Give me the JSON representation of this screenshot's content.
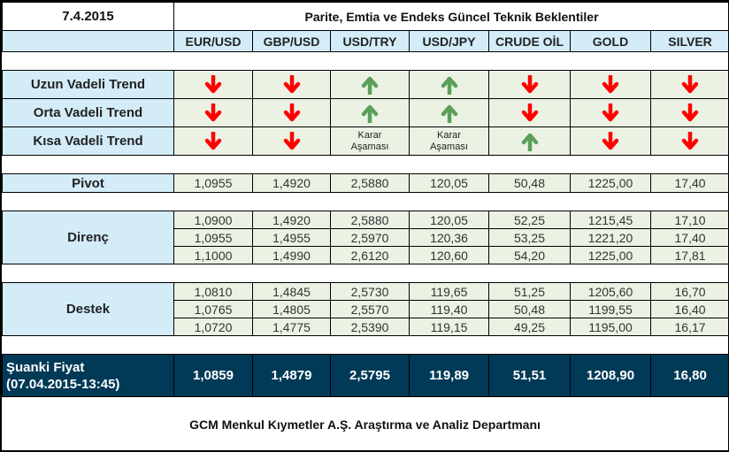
{
  "date": "7.4.2015",
  "title": "Parite, Emtia ve Endeks Güncel Teknik Beklentiler",
  "columns": [
    "EUR/USD",
    "GBP/USD",
    "USD/TRY",
    "USD/JPY",
    "CRUDE OİL",
    "GOLD",
    "SILVER"
  ],
  "colors": {
    "down": "#ff0000",
    "up": "#5aa05a",
    "header_bg": "#d3ecf8",
    "cell_bg": "#ebf2e4",
    "current_bg": "#003a57"
  },
  "trends": [
    {
      "label": "Uzun Vadeli Trend",
      "values": [
        "down",
        "down",
        "up",
        "up",
        "down",
        "down",
        "down"
      ]
    },
    {
      "label": "Orta Vadeli Trend",
      "values": [
        "down",
        "down",
        "up",
        "up",
        "down",
        "down",
        "down"
      ]
    },
    {
      "label": "Kısa Vadeli Trend",
      "values": [
        "down",
        "down",
        "Karar Aşaması",
        "Karar Aşaması",
        "up",
        "down",
        "down"
      ]
    }
  ],
  "pivot": {
    "label": "Pivot",
    "values": [
      "1,0955",
      "1,4920",
      "2,5880",
      "120,05",
      "50,48",
      "1225,00",
      "17,40"
    ]
  },
  "direnc": {
    "label": "Direnç",
    "rows": [
      [
        "1,0900",
        "1,4920",
        "2,5880",
        "120,05",
        "52,25",
        "1215,45",
        "17,10"
      ],
      [
        "1,0955",
        "1,4955",
        "2,5970",
        "120,36",
        "53,25",
        "1221,20",
        "17,40"
      ],
      [
        "1,1000",
        "1,4990",
        "2,6120",
        "120,60",
        "54,20",
        "1225,00",
        "17,81"
      ]
    ]
  },
  "destek": {
    "label": "Destek",
    "rows": [
      [
        "1,0810",
        "1,4845",
        "2,5730",
        "119,65",
        "51,25",
        "1205,60",
        "16,70"
      ],
      [
        "1,0765",
        "1,4805",
        "2,5570",
        "119,40",
        "50,48",
        "1199,55",
        "16,40"
      ],
      [
        "1,0720",
        "1,4775",
        "2,5390",
        "119,15",
        "49,25",
        "1195,00",
        "16,17"
      ]
    ]
  },
  "current": {
    "label_line1": "Şuanki Fiyat",
    "label_line2": "(07.04.2015-13:45)",
    "values": [
      "1,0859",
      "1,4879",
      "2,5795",
      "119,89",
      "51,51",
      "1208,90",
      "16,80"
    ]
  },
  "footer": "GCM Menkul Kıymetler A.Ş. Araştırma ve Analiz Departmanı"
}
